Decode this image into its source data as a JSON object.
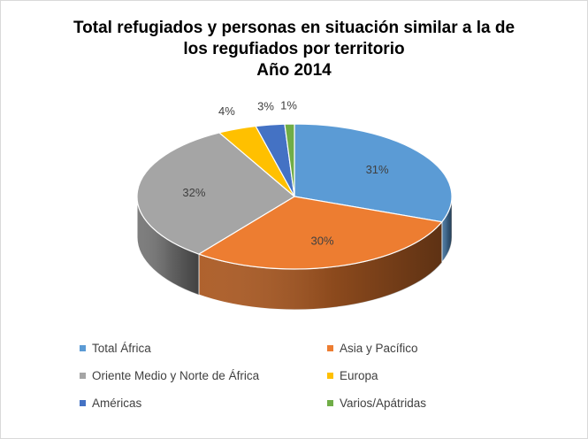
{
  "chart_data": {
    "type": "pie",
    "title_lines": [
      "Total refugiados y personas en situación similar a la de",
      "los regufiados por territorio",
      "Año 2014"
    ],
    "categories": [
      "Total África",
      "Asia y Pacífico",
      "Oriente Medio y Norte  de África",
      "Europa",
      "Américas",
      "Varios/Apátridas"
    ],
    "values": [
      31,
      30,
      32,
      4,
      3,
      1
    ],
    "data_labels": [
      "31%",
      "30%",
      "32%",
      "4%",
      "3%",
      "1%"
    ],
    "colors": [
      "#5b9bd5",
      "#ed7d31",
      "#a5a5a5",
      "#ffc000",
      "#4472c4",
      "#70ad47"
    ],
    "legend_position": "bottom",
    "style": "3d-pie"
  }
}
